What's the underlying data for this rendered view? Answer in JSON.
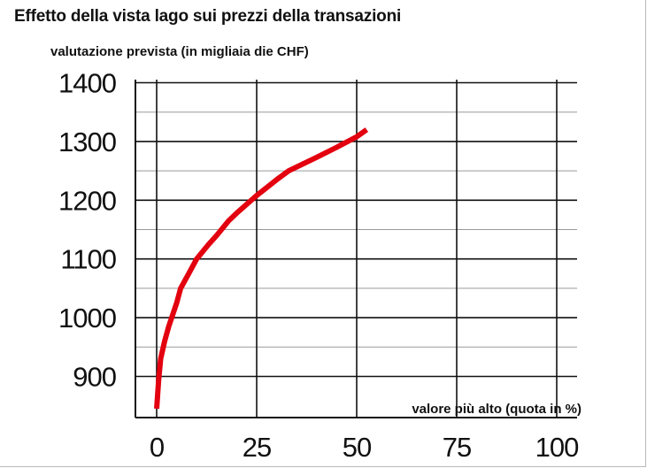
{
  "chart_data": {
    "type": "line",
    "title": "Effetto della vista lago sui prezzi della transazioni",
    "ylabel": "valutazione prevista (in migliaia die CHF)",
    "xlabel": "valore più alto (quota in %)",
    "x_ticks": [
      "0",
      "25",
      "50",
      "75",
      "100"
    ],
    "y_ticks": [
      "900",
      "1000",
      "1100",
      "1200",
      "1300",
      "1400"
    ],
    "xlim": [
      0,
      100
    ],
    "ylim": [
      850,
      1400
    ],
    "grid": true,
    "series": [
      {
        "color": "#e3000f",
        "x": [
          0,
          0.5,
          1,
          2,
          3,
          5,
          6,
          8,
          10,
          13,
          15,
          18,
          20,
          25,
          30,
          33,
          40,
          45,
          50,
          52.5
        ],
        "y": [
          845,
          895,
          930,
          960,
          985,
          1025,
          1050,
          1075,
          1100,
          1125,
          1140,
          1165,
          1178,
          1208,
          1235,
          1250,
          1273,
          1290,
          1308,
          1320
        ]
      }
    ]
  }
}
